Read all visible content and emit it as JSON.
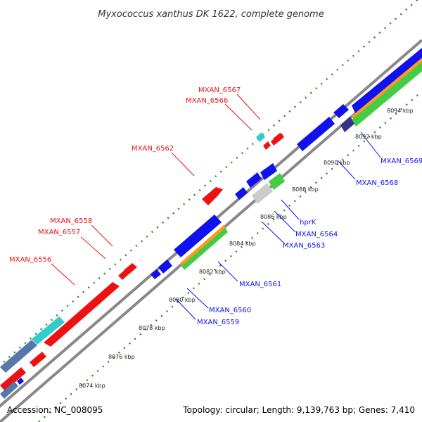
{
  "title": "Myxococcus xanthus DK 1622, complete genome",
  "footer": {
    "accession": "Accession: NC_008095",
    "summary": "Topology: circular; Length: 9,139,763 bp; Genes: 7,410"
  },
  "colors": {
    "forward_gene": "#ee1111",
    "reverse_gene": "#1111ee",
    "backbone": "#888888",
    "ticks": "#2a8a2a",
    "cyan_feature": "#33cccc",
    "green_feature": "#44cc44"
  },
  "scale_labels": [
    "8074 kbp",
    "8076 kbp",
    "8078 kbp",
    "8080 kbp",
    "8082 kbp",
    "8084 kbp",
    "8086 kbp",
    "8088 kbp",
    "8090 kbp",
    "8092 kbp",
    "8094 kbp"
  ],
  "gene_labels_forward": [
    "MXAN_6567",
    "MXAN_6566",
    "MXAN_6562",
    "MXAN_6558",
    "MXAN_6557",
    "MXAN_6556"
  ],
  "gene_labels_reverse": [
    "MXAN_6569",
    "MXAN_6568",
    "hprK",
    "MXAN_6564",
    "MXAN_6563",
    "MXAN_6561",
    "MXAN_6560",
    "MXAN_6559"
  ]
}
